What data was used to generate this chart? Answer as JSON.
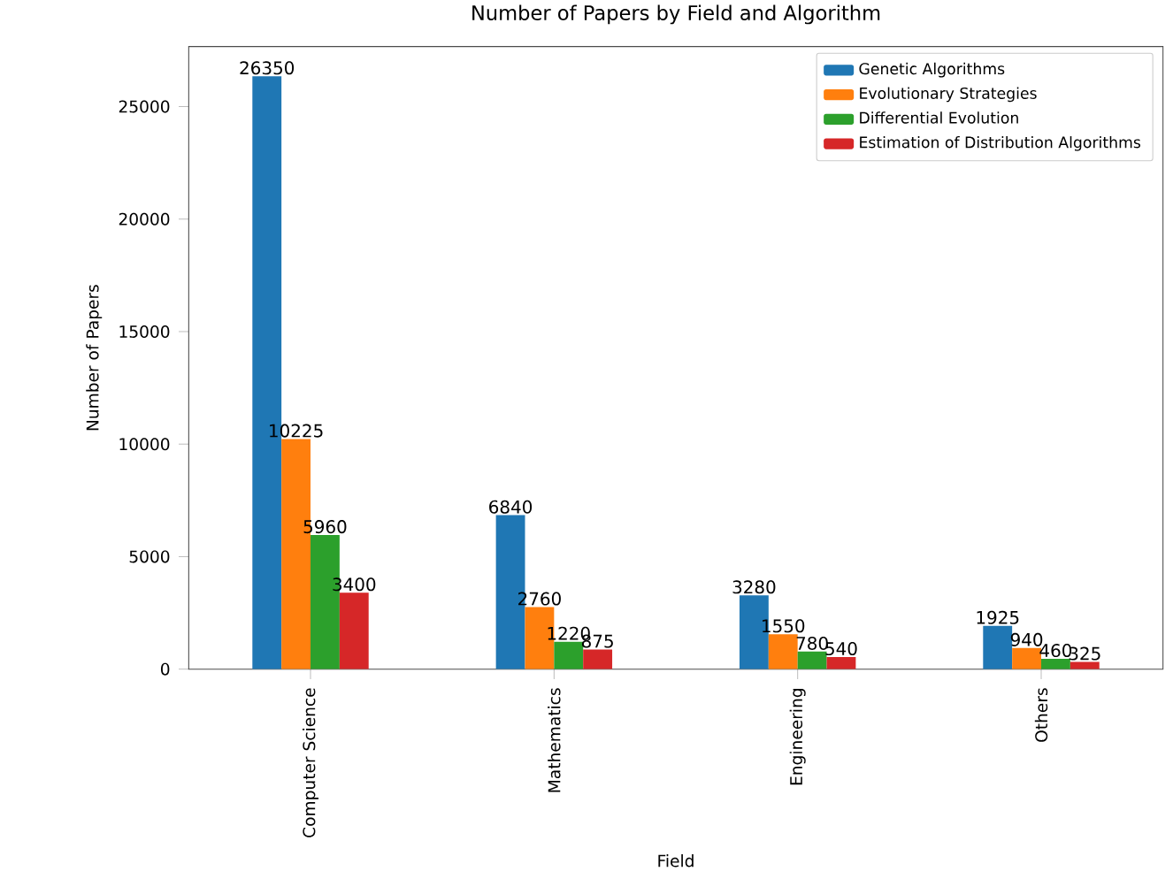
{
  "chart_data": {
    "type": "bar",
    "title": "Number of Papers by Field and Algorithm",
    "xlabel": "Field",
    "ylabel": "Number of Papers",
    "categories": [
      "Computer Science",
      "Mathematics",
      "Engineering",
      "Others"
    ],
    "series": [
      {
        "name": "Genetic Algorithms",
        "color": "#1f77b4",
        "values": [
          26350,
          6840,
          3280,
          1925
        ]
      },
      {
        "name": "Evolutionary Strategies",
        "color": "#ff7f0e",
        "values": [
          10225,
          2760,
          1550,
          940
        ]
      },
      {
        "name": "Differential Evolution",
        "color": "#2ca02c",
        "values": [
          5960,
          1220,
          780,
          460
        ]
      },
      {
        "name": "Estimation of Distribution Algorithms",
        "color": "#d62728",
        "values": [
          3400,
          875,
          540,
          325
        ]
      }
    ],
    "ylim": [
      0,
      27667
    ],
    "yticks": [
      0,
      5000,
      10000,
      15000,
      20000,
      25000
    ],
    "grid": false,
    "legend": "top right",
    "data_labels": true
  }
}
